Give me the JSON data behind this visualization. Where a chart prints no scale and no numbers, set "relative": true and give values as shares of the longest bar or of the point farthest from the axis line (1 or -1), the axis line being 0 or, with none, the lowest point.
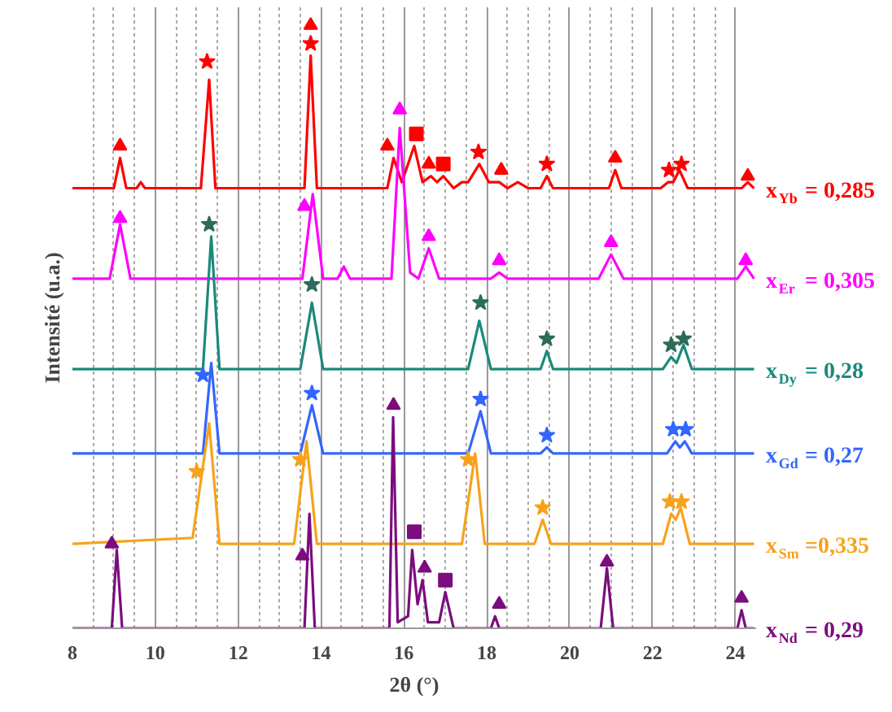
{
  "chart_data": {
    "type": "line",
    "relative": true,
    "xlabel": "2θ (°)",
    "ylabel": "Intensité (u.a.)",
    "xlim": [
      8,
      24.5
    ],
    "xticks": [
      8,
      10,
      12,
      14,
      16,
      18,
      20,
      22,
      24
    ],
    "grid": "x",
    "series": [
      {
        "name": "x$_{Yb}$ = 0,285",
        "color": "#ff0000",
        "x": [
          8.0,
          9.0,
          9.15,
          9.3,
          9.55,
          9.65,
          9.75,
          11.1,
          11.3,
          11.45,
          13.6,
          13.75,
          13.9,
          15.6,
          15.75,
          15.95,
          16.25,
          16.45,
          16.65,
          16.8,
          16.95,
          17.2,
          17.4,
          17.55,
          17.82,
          18.05,
          18.3,
          18.5,
          18.75,
          19.0,
          19.3,
          19.45,
          19.6,
          20.95,
          21.1,
          21.25,
          22.2,
          22.38,
          22.5,
          22.65,
          22.85,
          24.15,
          24.3,
          24.45
        ],
        "values": [
          0.73,
          0.73,
          0.78,
          0.73,
          0.73,
          0.74,
          0.73,
          0.73,
          0.91,
          0.73,
          0.73,
          0.95,
          0.73,
          0.73,
          0.78,
          0.74,
          0.8,
          0.74,
          0.75,
          0.74,
          0.75,
          0.73,
          0.74,
          0.74,
          0.77,
          0.74,
          0.74,
          0.73,
          0.74,
          0.73,
          0.73,
          0.75,
          0.73,
          0.73,
          0.76,
          0.73,
          0.73,
          0.74,
          0.74,
          0.76,
          0.73,
          0.73,
          0.74,
          0.73
        ]
      },
      {
        "name": "x$_{Er}$ = 0,305",
        "color": "#ff00ff",
        "x": [
          8.0,
          8.9,
          9.15,
          9.4,
          13.55,
          13.8,
          14.05,
          14.4,
          14.55,
          14.7,
          15.7,
          15.9,
          16.15,
          16.35,
          16.6,
          16.85,
          18.1,
          18.3,
          18.5,
          20.7,
          21.0,
          21.3,
          24.05,
          24.25,
          24.45
        ],
        "values": [
          0.58,
          0.58,
          0.67,
          0.58,
          0.58,
          0.72,
          0.58,
          0.58,
          0.6,
          0.58,
          0.58,
          0.83,
          0.59,
          0.58,
          0.63,
          0.58,
          0.58,
          0.59,
          0.58,
          0.58,
          0.62,
          0.58,
          0.58,
          0.6,
          0.58
        ]
      },
      {
        "name": "x$_{Dy}$ = 0,28",
        "color": "#1a8a7a",
        "x": [
          8.0,
          11.15,
          11.35,
          11.55,
          13.5,
          13.78,
          14.05,
          17.55,
          17.82,
          18.1,
          19.3,
          19.45,
          19.6,
          22.25,
          22.45,
          22.58,
          22.75,
          22.95,
          24.45
        ],
        "values": [
          0.43,
          0.43,
          0.65,
          0.43,
          0.43,
          0.54,
          0.43,
          0.43,
          0.51,
          0.43,
          0.43,
          0.46,
          0.43,
          0.43,
          0.45,
          0.44,
          0.47,
          0.43,
          0.43
        ]
      },
      {
        "name": "x$_{Gd}$ = 0,27",
        "color": "#3366ff",
        "x": [
          8.0,
          11.15,
          11.35,
          11.55,
          13.5,
          13.78,
          14.05,
          17.55,
          17.85,
          18.1,
          19.3,
          19.45,
          19.6,
          22.35,
          22.55,
          22.66,
          22.78,
          22.95,
          24.45
        ],
        "values": [
          0.29,
          0.29,
          0.44,
          0.29,
          0.29,
          0.37,
          0.29,
          0.29,
          0.36,
          0.29,
          0.29,
          0.3,
          0.29,
          0.29,
          0.31,
          0.3,
          0.31,
          0.29,
          0.29
        ]
      },
      {
        "name": "x$_{Sm}$ =0,335",
        "color": "#f7a21b",
        "x": [
          8.0,
          10.9,
          11.3,
          11.55,
          13.35,
          13.65,
          13.9,
          17.4,
          17.72,
          17.95,
          19.15,
          19.35,
          19.55,
          22.25,
          22.45,
          22.56,
          22.68,
          22.9,
          24.45
        ],
        "values": [
          0.14,
          0.15,
          0.34,
          0.14,
          0.14,
          0.31,
          0.14,
          0.14,
          0.29,
          0.14,
          0.14,
          0.18,
          0.14,
          0.14,
          0.19,
          0.18,
          0.2,
          0.14,
          0.14
        ]
      },
      {
        "name": "x$_{Nd}$ = 0,29",
        "color": "#7b0d7e",
        "x": [
          8.0,
          8.95,
          9.07,
          9.2,
          13.6,
          13.72,
          13.85,
          15.65,
          15.74,
          15.85,
          16.1,
          16.2,
          16.33,
          16.45,
          16.58,
          16.85,
          17.0,
          17.2,
          18.1,
          18.2,
          18.3,
          20.75,
          20.9,
          21.05,
          24.05,
          24.15,
          24.25,
          24.45
        ],
        "values": [
          0.0,
          0.0,
          0.13,
          0.0,
          0.0,
          0.19,
          0.0,
          0.0,
          0.35,
          0.01,
          0.02,
          0.13,
          0.04,
          0.08,
          0.01,
          0.01,
          0.06,
          0.0,
          0.0,
          0.02,
          0.0,
          0.0,
          0.1,
          0.0,
          0.0,
          0.03,
          0.0,
          0.0
        ]
      },
      {
        "type": "scatter",
        "marker": "triangle",
        "color": "#ff0000",
        "x": [
          9.15,
          13.75,
          15.6,
          16.6,
          18.35,
          21.1,
          24.3
        ],
        "values": [
          0.8,
          1.0,
          0.8,
          0.77,
          0.76,
          0.78,
          0.75
        ]
      },
      {
        "type": "scatter",
        "marker": "star",
        "color": "#ff0000",
        "x": [
          11.25,
          13.75,
          17.8,
          19.45,
          22.4,
          22.7
        ],
        "values": [
          0.94,
          0.97,
          0.79,
          0.77,
          0.76,
          0.77
        ]
      },
      {
        "type": "scatter",
        "marker": "square",
        "color": "#ff0000",
        "x": [
          16.3,
          16.95
        ],
        "values": [
          0.82,
          0.77
        ]
      },
      {
        "type": "scatter",
        "marker": "triangle",
        "color": "#ff00ff",
        "x": [
          9.15,
          13.6,
          15.9,
          16.6,
          18.3,
          21.0,
          24.25
        ],
        "values": [
          0.68,
          0.7,
          0.86,
          0.65,
          0.61,
          0.64,
          0.61
        ]
      },
      {
        "type": "scatter",
        "marker": "star",
        "color": "#2e6b5a",
        "x": [
          11.3,
          13.78,
          17.85,
          19.45,
          22.45,
          22.75
        ],
        "values": [
          0.67,
          0.57,
          0.54,
          0.48,
          0.47,
          0.48
        ]
      },
      {
        "type": "scatter",
        "marker": "star",
        "color": "#3366ff",
        "x": [
          11.15,
          13.78,
          17.85,
          19.45,
          22.5,
          22.8
        ],
        "values": [
          0.42,
          0.39,
          0.38,
          0.32,
          0.33,
          0.33
        ]
      },
      {
        "type": "scatter",
        "marker": "star",
        "color": "#f7a21b",
        "x": [
          11.0,
          13.5,
          17.55,
          19.35,
          22.42,
          22.7
        ],
        "values": [
          0.26,
          0.28,
          0.28,
          0.2,
          0.21,
          0.21
        ]
      },
      {
        "type": "scatter",
        "marker": "triangle",
        "color": "#7b0d7e",
        "x": [
          8.95,
          13.55,
          15.75,
          16.5,
          18.3,
          20.9,
          24.15
        ],
        "values": [
          0.14,
          0.12,
          0.37,
          0.1,
          0.04,
          0.11,
          0.05
        ]
      },
      {
        "type": "scatter",
        "marker": "square",
        "color": "#7b0d7e",
        "x": [
          16.25,
          17.0
        ],
        "values": [
          0.16,
          0.08
        ]
      }
    ]
  }
}
